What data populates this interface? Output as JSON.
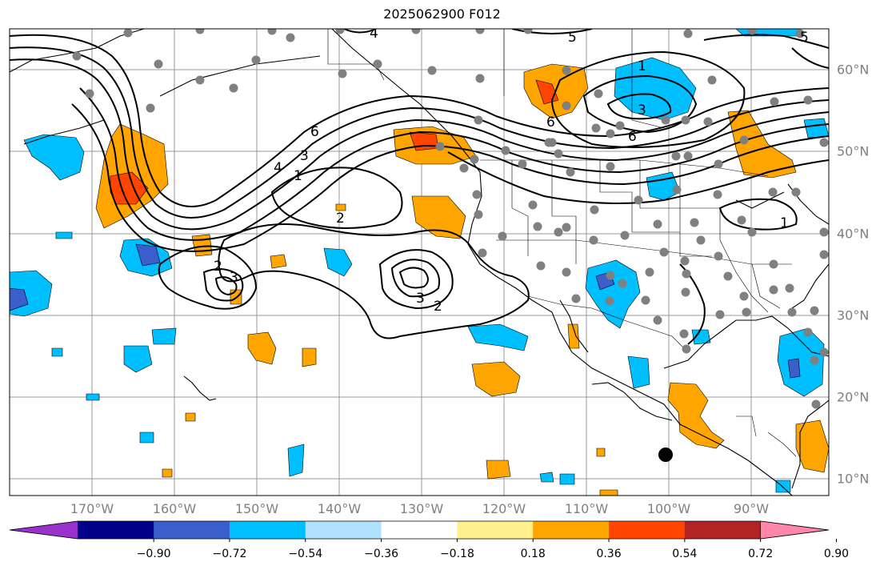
{
  "title": "2025062900 F012",
  "axes": {
    "lon_labels": [
      "170°W",
      "160°W",
      "150°W",
      "140°W",
      "130°W",
      "120°W",
      "110°W",
      "100°W",
      "90°W"
    ],
    "lat_labels": [
      "60°N",
      "50°N",
      "40°N",
      "30°N",
      "20°N",
      "10°N"
    ]
  },
  "colorbar": {
    "colors": [
      "#9932cc",
      "#00008b",
      "#3a5fcd",
      "#00bfff",
      "#b0e2ff",
      "#ffffff",
      "#fff08c",
      "#ffa500",
      "#ff4500",
      "#b22222",
      "#ff88aa"
    ],
    "tick_labels": [
      "−0.90",
      "−0.72",
      "−0.54",
      "−0.36",
      "−0.18",
      "0.18",
      "0.36",
      "0.54",
      "0.72",
      "0.90"
    ]
  },
  "contour_labels": [
    "5",
    "4",
    "6",
    "1",
    "6",
    "3",
    "5",
    "6",
    "4",
    "3",
    "1",
    "2",
    "2",
    "3",
    "3",
    "2",
    "1"
  ],
  "station_marker_color": "#808080",
  "highlight_marker_color": "#000000"
}
